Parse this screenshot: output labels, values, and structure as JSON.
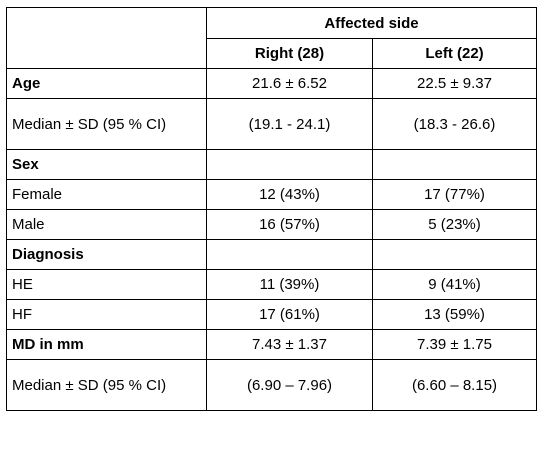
{
  "table": {
    "group_header": "Affected side",
    "col_right": "Right (28)",
    "col_left": "Left (22)",
    "rows": [
      {
        "label": "Age",
        "right": "21.6 ± 6.52",
        "left": "22.5 ± 9.37"
      },
      {
        "label": "Median ± SD (95 % CI)",
        "right": "(19.1 - 24.1)",
        "left": "(18.3 - 26.6)"
      },
      {
        "label": "Sex",
        "right": "",
        "left": ""
      },
      {
        "label": "Female",
        "right": "12 (43%)",
        "left": "17 (77%)"
      },
      {
        "label": "Male",
        "right": "16 (57%)",
        "left": "5 (23%)"
      },
      {
        "label": "Diagnosis",
        "right": "",
        "left": ""
      },
      {
        "label": "HE",
        "right": "11 (39%)",
        "left": "9 (41%)"
      },
      {
        "label": "HF",
        "right": "17 (61%)",
        "left": "13 (59%)"
      },
      {
        "label": "MD in mm",
        "right": "7.43 ± 1.37",
        "left": "7.39 ± 1.75"
      },
      {
        "label": "Median ± SD (95 % CI)",
        "right": "(6.90 – 7.96)",
        "left": "(6.60 – 8.15)"
      }
    ]
  }
}
